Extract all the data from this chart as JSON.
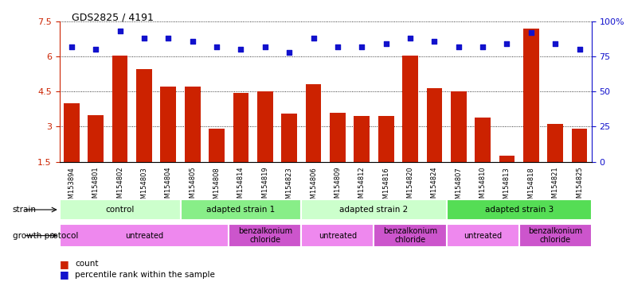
{
  "title": "GDS2825 / 4191",
  "samples": [
    "GSM153894",
    "GSM154801",
    "GSM154802",
    "GSM154803",
    "GSM154804",
    "GSM154805",
    "GSM154808",
    "GSM154814",
    "GSM154819",
    "GSM154823",
    "GSM154806",
    "GSM154809",
    "GSM154812",
    "GSM154816",
    "GSM154820",
    "GSM154824",
    "GSM154807",
    "GSM154810",
    "GSM154813",
    "GSM154818",
    "GSM154821",
    "GSM154825"
  ],
  "bar_values": [
    4.0,
    3.5,
    6.05,
    5.45,
    4.7,
    4.7,
    2.9,
    4.45,
    4.5,
    3.55,
    4.8,
    3.6,
    3.45,
    3.45,
    6.05,
    4.65,
    4.5,
    3.4,
    1.75,
    7.2,
    3.1,
    2.9
  ],
  "dot_values_pct": [
    82,
    80,
    93,
    88,
    88,
    86,
    82,
    80,
    82,
    78,
    88,
    82,
    82,
    84,
    88,
    86,
    82,
    82,
    84,
    92,
    84,
    80
  ],
  "bar_color": "#cc2200",
  "dot_color": "#1111cc",
  "ylim_left": [
    1.5,
    7.5
  ],
  "ylim_right": [
    0,
    100
  ],
  "yticks_left": [
    1.5,
    3.0,
    4.5,
    6.0,
    7.5
  ],
  "ytick_labels_left": [
    "1.5",
    "3",
    "4.5",
    "6",
    "7.5"
  ],
  "yticks_right": [
    0,
    25,
    50,
    75,
    100
  ],
  "ytick_labels_right": [
    "0",
    "25",
    "50",
    "75",
    "100%"
  ],
  "strain_groups": [
    {
      "label": "control",
      "start": 0,
      "end": 5,
      "color": "#ccffcc"
    },
    {
      "label": "adapted strain 1",
      "start": 5,
      "end": 10,
      "color": "#88ee88"
    },
    {
      "label": "adapted strain 2",
      "start": 10,
      "end": 16,
      "color": "#ccffcc"
    },
    {
      "label": "adapted strain 3",
      "start": 16,
      "end": 22,
      "color": "#55dd55"
    }
  ],
  "protocol_groups": [
    {
      "label": "untreated",
      "start": 0,
      "end": 7,
      "color": "#ee88ee"
    },
    {
      "label": "benzalkonium\nchloride",
      "start": 7,
      "end": 10,
      "color": "#cc55cc"
    },
    {
      "label": "untreated",
      "start": 10,
      "end": 13,
      "color": "#ee88ee"
    },
    {
      "label": "benzalkonium\nchloride",
      "start": 13,
      "end": 16,
      "color": "#cc55cc"
    },
    {
      "label": "untreated",
      "start": 16,
      "end": 19,
      "color": "#ee88ee"
    },
    {
      "label": "benzalkonium\nchloride",
      "start": 19,
      "end": 22,
      "color": "#cc55cc"
    }
  ],
  "strain_label": "strain",
  "protocol_label": "growth protocol",
  "legend_count": "count",
  "legend_pct": "percentile rank within the sample",
  "n_samples": 22
}
